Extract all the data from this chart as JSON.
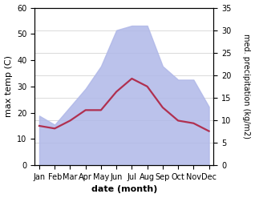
{
  "months": [
    "Jan",
    "Feb",
    "Mar",
    "Apr",
    "May",
    "Jun",
    "Jul",
    "Aug",
    "Sep",
    "Oct",
    "Nov",
    "Dec"
  ],
  "temperature": [
    15,
    14,
    17,
    21,
    21,
    28,
    33,
    30,
    22,
    17,
    16,
    13
  ],
  "precipitation": [
    11,
    9,
    13,
    17,
    22,
    30,
    31,
    31,
    22,
    19,
    19,
    13
  ],
  "temp_color": "#b03050",
  "precip_color": "#b0b8e8",
  "left_ylim": [
    0,
    60
  ],
  "right_ylim": [
    0,
    35
  ],
  "left_yticks": [
    0,
    10,
    20,
    30,
    40,
    50,
    60
  ],
  "right_yticks": [
    0,
    5,
    10,
    15,
    20,
    25,
    30,
    35
  ],
  "xlabel": "date (month)",
  "ylabel_left": "max temp (C)",
  "ylabel_right": "med. precipitation (kg/m2)",
  "temp_linewidth": 1.6,
  "bg_color": "#ffffff"
}
